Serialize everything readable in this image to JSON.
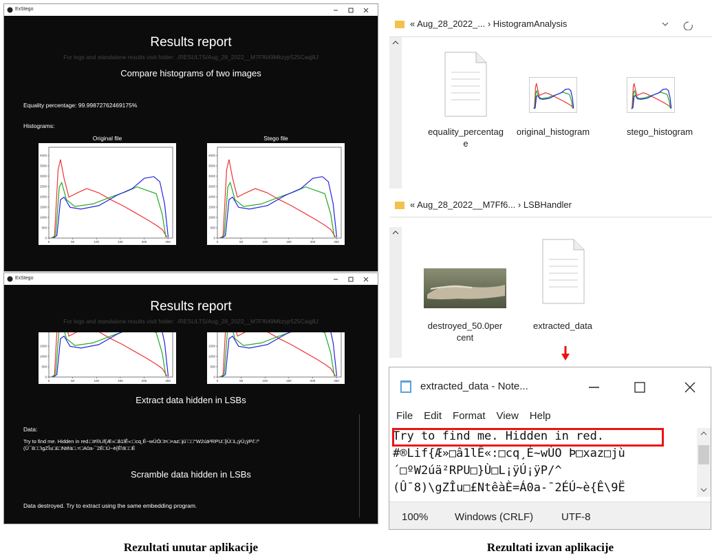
{
  "left_app": {
    "window_1": {
      "app_name": "ExStego",
      "report_title": "Results report",
      "folder_note": "For logs and standalone results visit folder: ./RESULTS/Aug_28_2022__M7Ff649Mkzyjr525Caqj8J",
      "section": "Compare histograms of two images",
      "equality": "Equality percentage: 99.99872762469175%",
      "histograms_label": "Histograms:",
      "plots": [
        {
          "title": "Original file"
        },
        {
          "title": "Stego file"
        }
      ],
      "xlim": [
        0,
        260
      ],
      "xticks": [
        0,
        50,
        100,
        150,
        200,
        250
      ],
      "ylim": [
        0,
        4400
      ],
      "yticks": [
        0,
        500,
        1000,
        1500,
        2000,
        2500,
        3000,
        3500,
        4000
      ]
    },
    "window_2": {
      "app_name": "ExStego",
      "report_title": "Results report",
      "folder_note": "For logs and standalone results visit folder: ./RESULTS/Aug_28_2022__M7Ff649Mkzyjr525Caqj8J",
      "yticks": [
        0,
        500,
        1000,
        1500
      ],
      "extract_section": "Extract data hidden in LSBs",
      "data_label": "Data:",
      "data_lines": [
        "Try to find me. Hidden in red.□#®Lif{Æ»□â1lÊ«:□cq¸É~wÚÓ□Þ□×az□jù´□□°W2úä²RPU□}Ù□L¡ÿÚ¡ÿP/□^",
        "(Û¯8□□\\gZÎu□£□Ntêà□.=□A0a-¯2É□Ú~è{Ê\\9□□É"
      ],
      "scramble_section": "Scramble data hidden in LSBs",
      "destroyed_note": "Data destroyed. Try to extract using the same embedding program."
    },
    "caption": "Rezultati unutar aplikacije"
  },
  "right_side": {
    "explorer_1": {
      "back_glyph": "«",
      "separator": "›",
      "path": [
        "Aug_28_2022_...",
        "HistogramAnalysis"
      ],
      "files": [
        "equality_percentage",
        "original_histogram",
        "stego_histogram"
      ]
    },
    "explorer_2": {
      "back_glyph": "«",
      "separator": "›",
      "path": [
        "Aug_28_2022__M7Ff6...",
        "LSBHandler"
      ],
      "files": [
        "destroyed_50.0percent",
        "extracted_data"
      ]
    },
    "notepad": {
      "title": "extracted_data - Note...",
      "menu": [
        "File",
        "Edit",
        "Format",
        "View",
        "Help"
      ],
      "lines": [
        "Try to find me. Hidden in red.",
        "#®Lif{Æ»□â1lÊ«:□cq¸É~wÚO Þ□xaz□jù",
        "´□ºW2úä²RPU□}Ù□L¡ÿÚ¡ÿP/^",
        "(Û¯8)\\gZÎu□£NtêàÈ=Á0a-¯2ÉÚ~è{Ê\\9Ë"
      ],
      "status": [
        "100%",
        "Windows (CRLF)",
        "UTF-8"
      ]
    },
    "caption": "Rezultati izvan aplikacije"
  }
}
